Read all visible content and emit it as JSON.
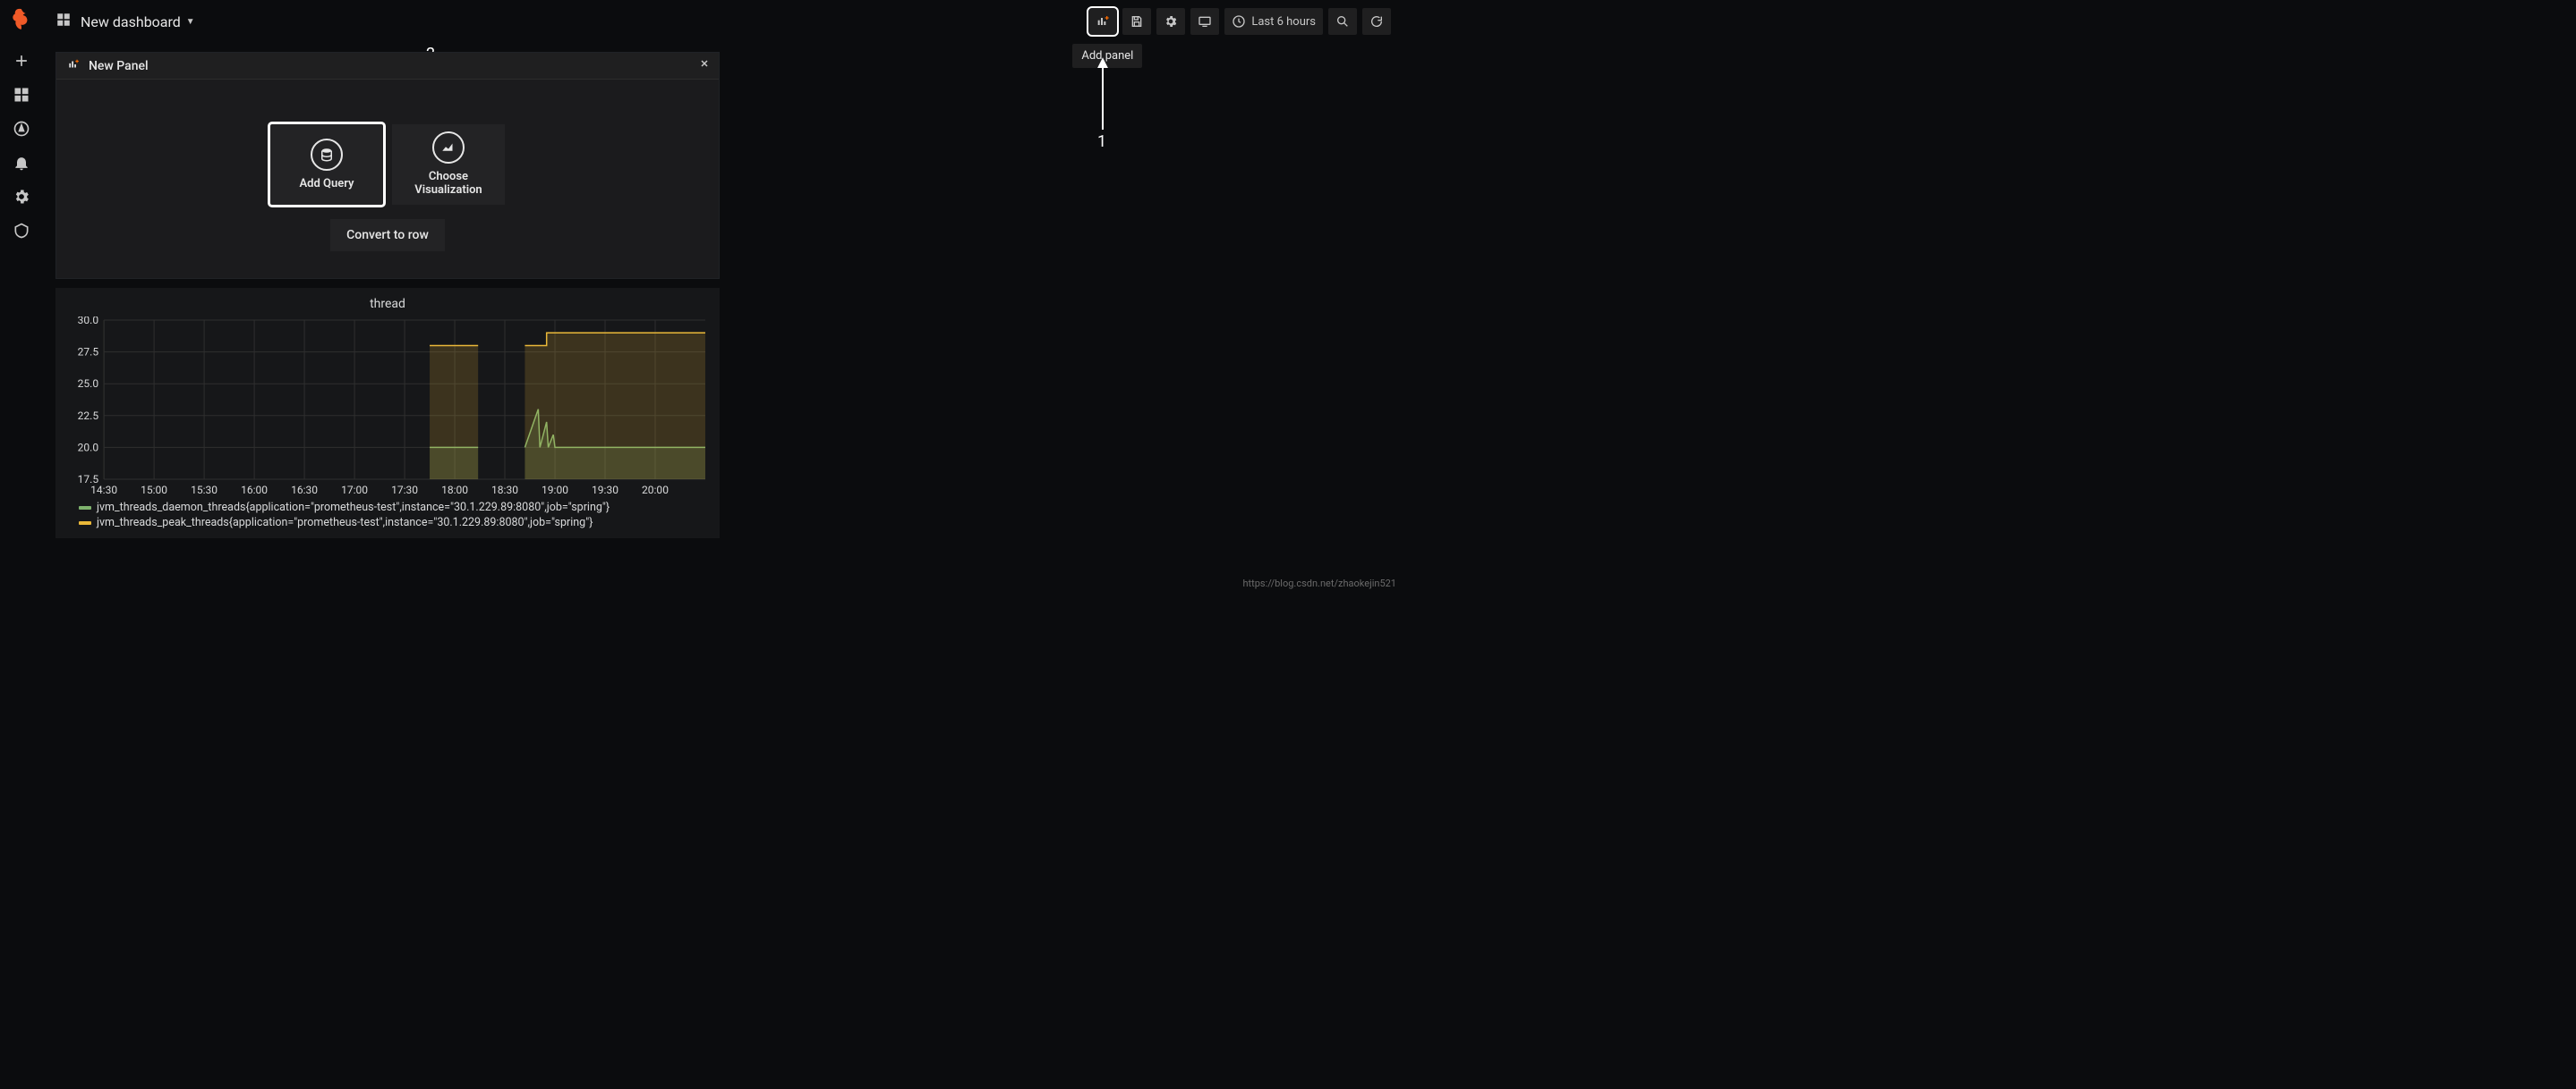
{
  "dashboard": {
    "title": "New dashboard"
  },
  "toolbar": {
    "tooltip_add_panel": "Add panel",
    "time_range_label": "Last 6 hours"
  },
  "annotations": {
    "num1": "1",
    "num2": "2"
  },
  "new_panel": {
    "header_label": "New Panel",
    "add_query_label": "Add Query",
    "choose_viz_label": "Choose\nVisualization",
    "convert_label": "Convert to row"
  },
  "chart": {
    "type": "line-area",
    "title": "thread",
    "background_color": "#161719",
    "grid_color": "#2f2f2f",
    "axis_label_color": "#d8d9da",
    "axis_fontsize": 12,
    "ylim": [
      17.5,
      30.0
    ],
    "ytick_step": 2.5,
    "yticks": [
      "30.0",
      "27.5",
      "25.0",
      "22.5",
      "20.0",
      "17.5"
    ],
    "x_categories": [
      "14:30",
      "15:00",
      "15:30",
      "16:00",
      "16:30",
      "17:00",
      "17:30",
      "18:00",
      "18:30",
      "19:00",
      "19:30",
      "20:00"
    ],
    "xlim_minutes": [
      870,
      1230
    ],
    "fill_opacity": 0.18,
    "series": [
      {
        "name": "jvm_threads_daemon_threads{application=\"prometheus-test\",instance=\"30.1.229.89:8080\",job=\"spring\"}",
        "color": "#7eb26d",
        "line_width": 1.5,
        "segments": [
          {
            "points": [
              [
                1065,
                20
              ],
              [
                1085,
                20
              ],
              [
                1094,
                20
              ]
            ]
          },
          {
            "points": [
              [
                1122,
                20
              ],
              [
                1130,
                23
              ],
              [
                1131,
                20
              ],
              [
                1135,
                22
              ],
              [
                1136,
                20
              ],
              [
                1139,
                21
              ],
              [
                1140,
                20
              ],
              [
                1230,
                20
              ]
            ]
          }
        ]
      },
      {
        "name": "jvm_threads_peak_threads{application=\"prometheus-test\",instance=\"30.1.229.89:8080\",job=\"spring\"}",
        "color": "#eab839",
        "line_width": 1.5,
        "segments": [
          {
            "points": [
              [
                1065,
                28
              ],
              [
                1094,
                28
              ]
            ]
          },
          {
            "points": [
              [
                1122,
                28
              ],
              [
                1135,
                28
              ],
              [
                1135,
                29
              ],
              [
                1230,
                29
              ]
            ]
          }
        ]
      }
    ]
  },
  "watermark": "https://blog.csdn.net/zhaokejin521"
}
